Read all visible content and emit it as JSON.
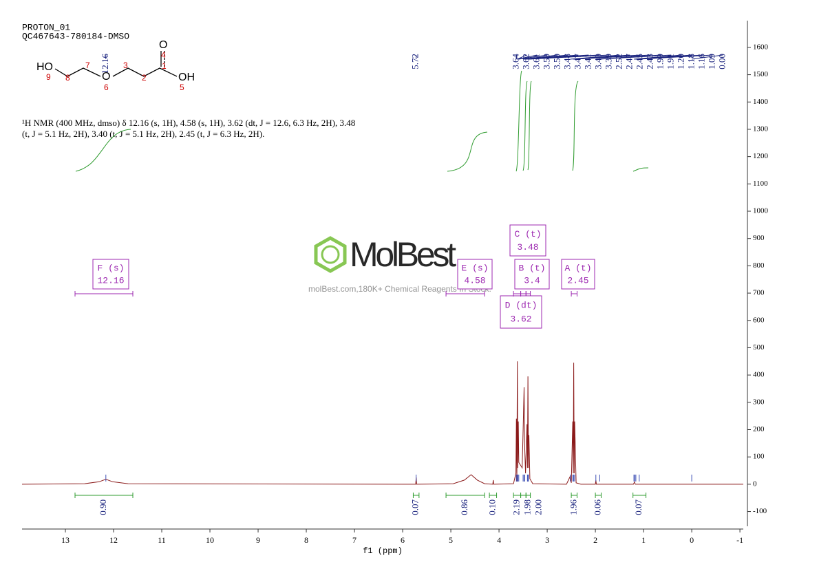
{
  "chart_data": {
    "type": "line",
    "title": "PROTON_01",
    "subtitle": "QC467643-780184-DMSO",
    "x_label": "f1 (ppm)",
    "xlim": [
      13.9,
      -1.07
    ],
    "xticks": [
      13,
      12,
      11,
      10,
      9,
      8,
      7,
      6,
      5,
      4,
      3,
      2,
      1,
      0,
      -1
    ],
    "ylim": [
      -154,
      1698
    ],
    "yticks": [
      -100,
      0,
      100,
      200,
      300,
      400,
      500,
      600,
      700,
      800,
      900,
      1000,
      1100,
      1200,
      1300,
      1400,
      1500,
      1600
    ],
    "x": [
      13.9,
      12.6,
      12.3,
      12.16,
      12.02,
      11.7,
      6.0,
      5.73,
      5.72,
      5.71,
      4.95,
      4.72,
      4.58,
      4.45,
      4.3,
      4.13,
      4.12,
      4.11,
      3.7,
      3.65,
      3.64,
      3.63,
      3.62,
      3.61,
      3.6,
      3.59,
      3.52,
      3.5,
      3.48,
      3.47,
      3.45,
      3.42,
      3.41,
      3.4,
      3.39,
      3.38,
      3.36,
      3.3,
      2.6,
      2.52,
      2.5,
      2.47,
      2.46,
      2.45,
      2.44,
      2.43,
      2.4,
      2.3,
      2.0,
      1.99,
      1.98,
      1.21,
      1.19,
      1.17,
      -1.07
    ],
    "series": [
      {
        "color": "#8b1a1a",
        "values": [
          0,
          2,
          9,
          18,
          9,
          2,
          0,
          0,
          25,
          0,
          2,
          15,
          35,
          15,
          2,
          0,
          15,
          0,
          2,
          40,
          240,
          10,
          450,
          60,
          230,
          80,
          60,
          200,
          355,
          150,
          40,
          220,
          60,
          395,
          60,
          180,
          20,
          2,
          0,
          30,
          5,
          230,
          40,
          445,
          40,
          230,
          5,
          0,
          0,
          15,
          0,
          0,
          8,
          0,
          0
        ]
      }
    ],
    "peaks": {
      "values": [
        12.16,
        5.72,
        3.64,
        3.62,
        3.61,
        3.59,
        3.5,
        3.48,
        3.47,
        3.41,
        3.4,
        3.39,
        2.52,
        2.47,
        2.45,
        2.43,
        1.99,
        1.91,
        1.2,
        1.18,
        1.16,
        1.09,
        0
      ],
      "value_labels": [
        "12.16",
        "5.72",
        "3.64",
        "3.62",
        "3.61",
        "3.59",
        "3.50",
        "3.48",
        "3.47",
        "3.41",
        "3.40",
        "3.39",
        "2.52",
        "2.47",
        "2.45",
        "2.43",
        "1.99",
        "1.91",
        "1.20",
        "1.18",
        "1.16",
        "1.09",
        "0.00"
      ]
    },
    "integrals": {
      "ranges": [
        [
          12.8,
          11.6
        ],
        [
          5.78,
          5.66
        ],
        [
          5.1,
          4.3
        ],
        [
          4.2,
          4.05
        ],
        [
          3.7,
          3.55
        ],
        [
          3.55,
          3.44
        ],
        [
          3.44,
          3.35
        ],
        [
          2.5,
          2.38
        ],
        [
          2.0,
          1.88
        ],
        [
          1.22,
          0.95
        ]
      ],
      "values": [
        0.9,
        0.07,
        0.86,
        0.1,
        2.19,
        1.98,
        2.0,
        1.96,
        0.06,
        0.07
      ],
      "value_labels": [
        "0.90",
        "0.07",
        "0.86",
        "0.10",
        "2.19",
        "1.98",
        "2.00",
        "1.96",
        "0.06",
        "0.07"
      ]
    },
    "multiplets": [
      {
        "label": "F (s)",
        "shift": 12.16,
        "range": [
          12.8,
          11.6
        ]
      },
      {
        "label": "E (s)",
        "shift": 4.58,
        "range": [
          5.1,
          4.3
        ]
      },
      {
        "label": "C (t)",
        "shift": 3.48,
        "range": [
          3.55,
          3.44
        ]
      },
      {
        "label": "B (t)",
        "shift": 3.4,
        "range": [
          3.44,
          3.35
        ]
      },
      {
        "label": "A (t)",
        "shift": 2.45,
        "range": [
          2.5,
          2.38
        ]
      },
      {
        "label": "D (dt)",
        "shift": 3.62,
        "range": [
          3.7,
          3.55
        ]
      }
    ]
  },
  "description": [
    "¹H NMR (400 MHz, dmso) δ 12.16 (s, 1H), 4.58 (s, 1H), 3.62 (dt, J = 12.6, 6.3 Hz, 2H), 3.48",
    "(t, J = 5.1 Hz, 2H), 3.40 (t, J = 5.1 Hz, 2H), 2.45 (t, J = 6.3 Hz, 2H)."
  ],
  "molecule": {
    "atoms": [
      "HO",
      "O",
      "O",
      "OH"
    ],
    "numbers": [
      "9",
      "8",
      "7",
      "6",
      "3",
      "2",
      "1",
      "4",
      "5"
    ]
  },
  "watermark": {
    "brand": "MolBest",
    "tagline": "molBest.com,180K+ Chemical Reagents In Stock."
  }
}
